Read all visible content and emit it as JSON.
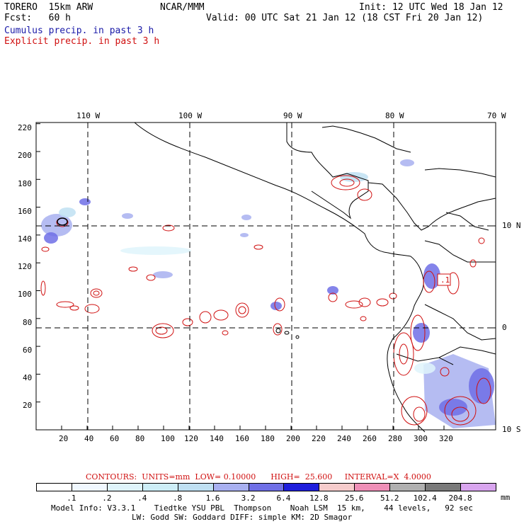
{
  "header": {
    "left1": "TORERO  15km ARW",
    "left2": "Fcst:   60 h",
    "center": "NCAR/MMM",
    "right1": "Init: 12 UTC Wed 18 Jan 12",
    "right2": "Valid: 00 UTC Sat 21 Jan 12 (18 CST Fri 20 Jan 12)",
    "legend_cumulus": "Cumulus precip. in past 3 h",
    "legend_explicit": "Explicit precip. in past 3 h"
  },
  "map": {
    "lon_labels": [
      "110 W",
      "100 W",
      "90 W",
      "80 W",
      "70 W"
    ],
    "lat_labels": [
      "10 N",
      "0",
      "10 S"
    ],
    "y_ticks": [
      "220",
      "200",
      "180",
      "160",
      "140",
      "120",
      "100",
      "80",
      "60",
      "40",
      "20"
    ],
    "x_ticks": [
      "20",
      "40",
      "60",
      "80",
      "100",
      "120",
      "140",
      "160",
      "180",
      "200",
      "220",
      "240",
      "260",
      "280",
      "300",
      "320"
    ],
    "station_label": ".1"
  },
  "contours_line": "CONTOURS:  UNITS=mm  LOW= 0.10000      HIGH=  25.600     INTERVAL=X  4.0000",
  "colorbar": {
    "labels": [
      ".1",
      ".2",
      ".4",
      ".8",
      "1.6",
      "3.2",
      "6.4",
      "12.8",
      "25.6",
      "51.2",
      "102.4",
      "204.8"
    ],
    "unit": "mm",
    "colors": [
      "#ffffff",
      "#f0f8ff",
      "#dff4fb",
      "#cdeef7",
      "#bfe0f2",
      "#a8b0f0",
      "#6f6fe6",
      "#1e1edc",
      "#f6cccc",
      "#ef8fb7",
      "#b0b0b0",
      "#7a7a7a",
      "#d9a5ef"
    ]
  },
  "footer": {
    "line1": "Model Info: V3.3.1    Tiedtke YSU PBL  Thompson    Noah LSM  15 km,    44 levels,   92 sec",
    "line2": "LW: Godd SW: Goddard DIFF: simple KM: 2D Smagor"
  }
}
